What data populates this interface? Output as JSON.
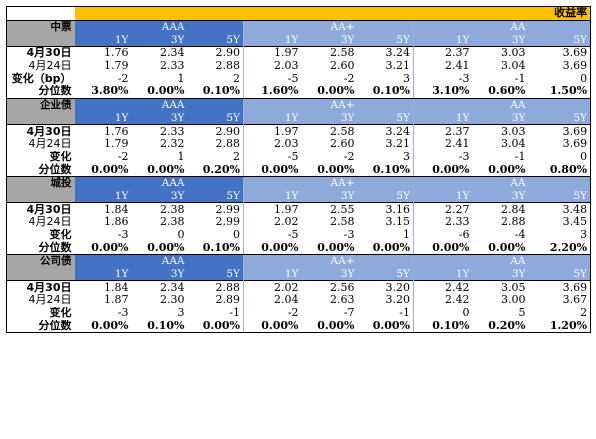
{
  "title": "收益率",
  "sections": [
    {
      "name": "中票",
      "groups": [
        {
          "rating": "AAA",
          "tenors": [
            "1Y",
            "3Y",
            "5Y"
          ]
        },
        {
          "rating": "AA+",
          "tenors": [
            "1Y",
            "3Y",
            "5Y"
          ]
        },
        {
          "rating": "AA",
          "tenors": [
            "1Y",
            "3Y",
            "5Y"
          ]
        }
      ],
      "rows": [
        {
          "label": "4月30日",
          "values": [
            "1.76",
            "2.34",
            "2.90",
            "1.97",
            "2.58",
            "3.24",
            "2.37",
            "3.03",
            "3.69"
          ]
        },
        {
          "label": "4月24日",
          "values": [
            "1.79",
            "2.33",
            "2.88",
            "2.03",
            "2.60",
            "3.21",
            "2.41",
            "3.04",
            "3.69"
          ]
        },
        {
          "label": "变化（bp）",
          "values": [
            "-2",
            "1",
            "2",
            "-5",
            "-2",
            "3",
            "-3",
            "-1",
            "0"
          ]
        },
        {
          "label": "分位数",
          "values": [
            "3.80%",
            "0.00%",
            "0.10%",
            "1.60%",
            "0.00%",
            "0.10%",
            "3.10%",
            "0.60%",
            "1.50%"
          ]
        }
      ]
    },
    {
      "name": "企业债",
      "groups": [
        {
          "rating": "AAA",
          "tenors": [
            "1Y",
            "3Y",
            "5Y"
          ]
        },
        {
          "rating": "AA+",
          "tenors": [
            "1Y",
            "3Y",
            "5Y"
          ]
        },
        {
          "rating": "AA",
          "tenors": [
            "1Y",
            "3Y",
            "5Y"
          ]
        }
      ],
      "rows": [
        {
          "label": "4月30日",
          "values": [
            "1.76",
            "2.33",
            "2.90",
            "1.97",
            "2.58",
            "3.24",
            "2.37",
            "3.03",
            "3.69"
          ]
        },
        {
          "label": "4月24日",
          "values": [
            "1.79",
            "2.32",
            "2.88",
            "2.03",
            "2.60",
            "3.21",
            "2.41",
            "3.04",
            "3.69"
          ]
        },
        {
          "label": "变化",
          "values": [
            "-2",
            "1",
            "2",
            "-5",
            "-2",
            "3",
            "-3",
            "-1",
            "0"
          ]
        },
        {
          "label": "分位数",
          "values": [
            "0.00%",
            "0.00%",
            "0.20%",
            "0.00%",
            "0.00%",
            "0.10%",
            "0.00%",
            "0.00%",
            "0.80%"
          ]
        }
      ]
    },
    {
      "name": "城投",
      "groups": [
        {
          "rating": "AAA",
          "tenors": [
            "1Y",
            "3Y",
            "5Y"
          ]
        },
        {
          "rating": "AA+",
          "tenors": [
            "1Y",
            "3Y",
            "5Y"
          ]
        },
        {
          "rating": "AA",
          "tenors": [
            "1Y",
            "3Y",
            "5Y"
          ]
        }
      ],
      "rows": [
        {
          "label": "4月30日",
          "values": [
            "1.84",
            "2.38",
            "2.99",
            "1.97",
            "2.55",
            "3.16",
            "2.27",
            "2.84",
            "3.48"
          ]
        },
        {
          "label": "4月24日",
          "values": [
            "1.86",
            "2.38",
            "2.99",
            "2.02",
            "2.58",
            "3.15",
            "2.33",
            "2.88",
            "3.45"
          ]
        },
        {
          "label": "变化",
          "values": [
            "-3",
            "0",
            "0",
            "-5",
            "-3",
            "1",
            "-6",
            "-4",
            "3"
          ]
        },
        {
          "label": "分位数",
          "values": [
            "0.00%",
            "0.00%",
            "0.10%",
            "0.00%",
            "0.00%",
            "0.00%",
            "0.00%",
            "0.00%",
            "2.20%"
          ]
        }
      ]
    },
    {
      "name": "公司债",
      "groups": [
        {
          "rating": "AAA",
          "tenors": [
            "1Y",
            "3Y",
            "5Y"
          ]
        },
        {
          "rating": "AA+",
          "tenors": [
            "1Y",
            "3Y",
            "5Y"
          ]
        },
        {
          "rating": "AA",
          "tenors": [
            "1Y",
            "3Y",
            "5Y"
          ]
        }
      ],
      "rows": [
        {
          "label": "4月30日",
          "values": [
            "1.84",
            "2.34",
            "2.88",
            "2.02",
            "2.56",
            "3.20",
            "2.42",
            "3.05",
            "3.69"
          ]
        },
        {
          "label": "4月24日",
          "values": [
            "1.87",
            "2.30",
            "2.89",
            "2.04",
            "2.63",
            "3.20",
            "2.42",
            "3.00",
            "3.67"
          ]
        },
        {
          "label": "变化",
          "values": [
            "-3",
            "3",
            "-1",
            "-2",
            "-7",
            "-1",
            "0",
            "5",
            "2"
          ]
        },
        {
          "label": "分位数",
          "values": [
            "0.00%",
            "0.10%",
            "0.00%",
            "0.00%",
            "0.00%",
            "0.00%",
            "0.10%",
            "0.20%",
            "1.20%"
          ]
        }
      ]
    }
  ]
}
